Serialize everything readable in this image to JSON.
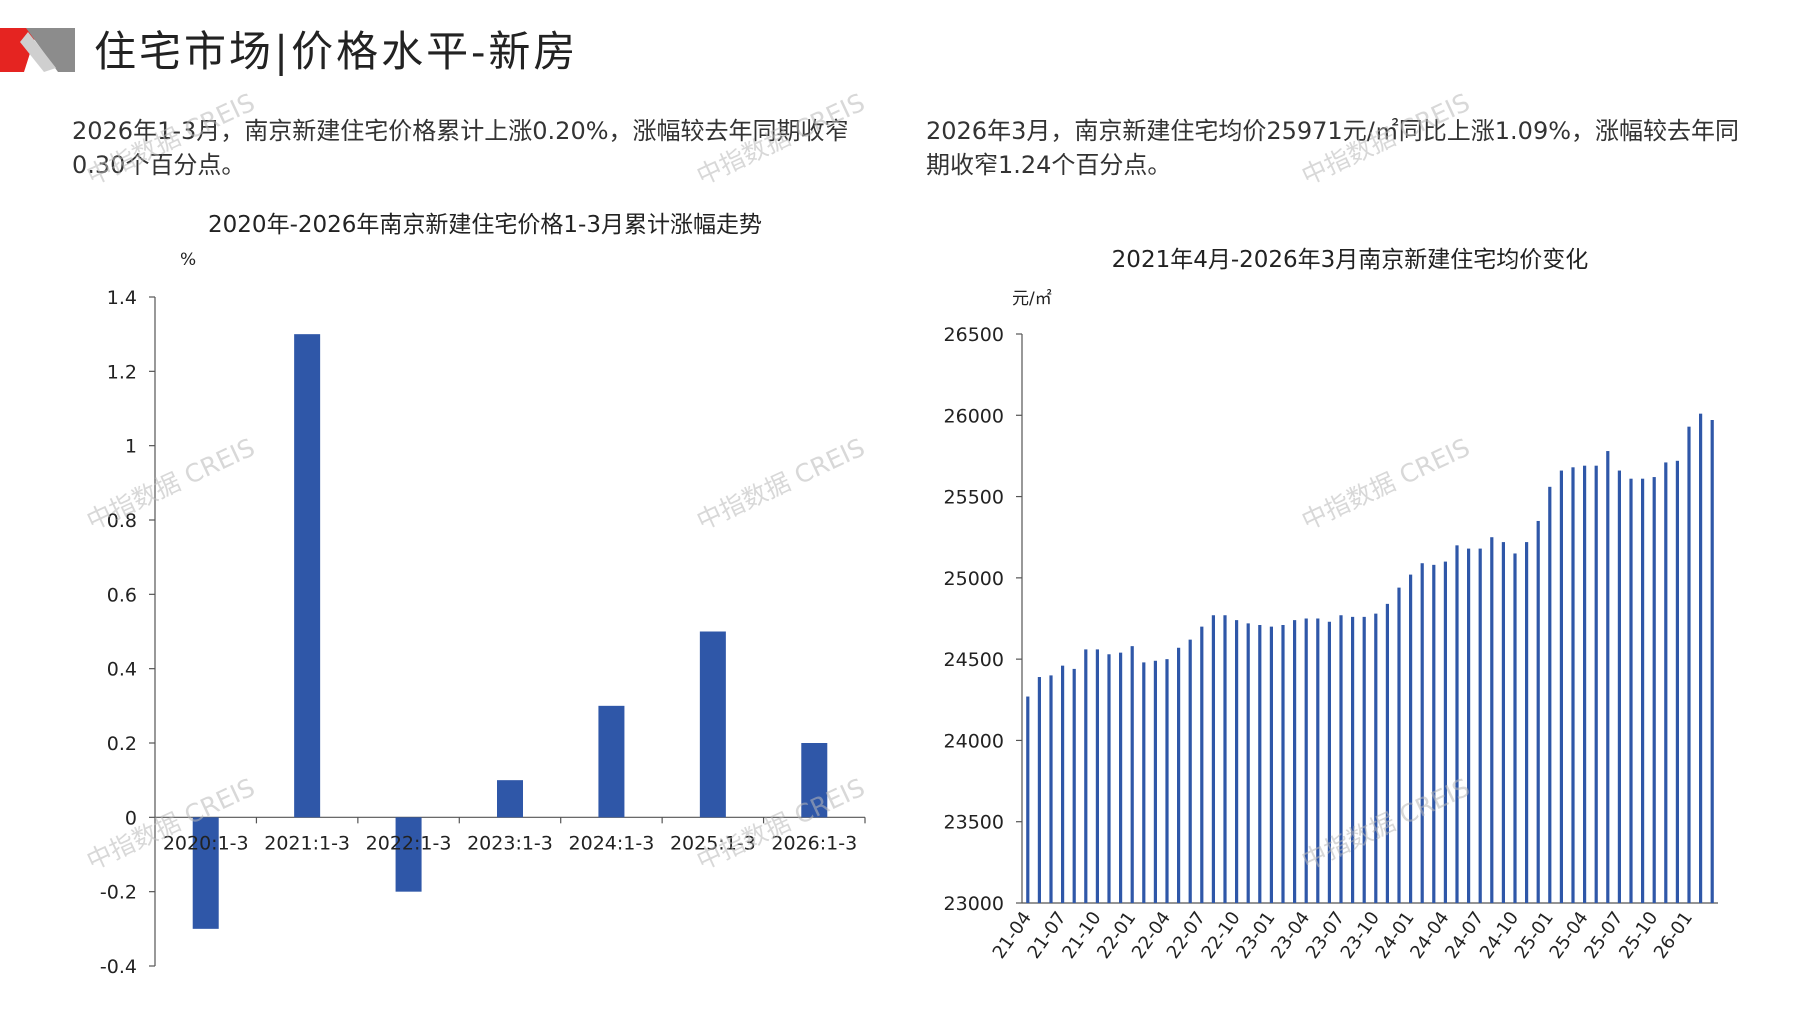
{
  "page": {
    "title": "住宅市场|价格水平-新房",
    "desc_left": "2026年1-3月，南京新建住宅价格累计上涨0.20%，涨幅较去年同期收窄0.30个百分点。",
    "desc_right": "2026年3月，南京新建住宅均价25971元/㎡同比上涨1.09%，涨幅较去年同期收窄1.24个百分点。",
    "watermark": "中指数据 CREIS",
    "accent_red": "#e52421",
    "accent_gray": "#8c8c8c"
  },
  "chart_data": [
    {
      "type": "bar",
      "title": "2020年-2026年南京新建住宅价格1-3月累计涨幅走势",
      "ylabel": "%",
      "xlabel": "",
      "categories": [
        "2020:1-3",
        "2021:1-3",
        "2022:1-3",
        "2023:1-3",
        "2024:1-3",
        "2025:1-3",
        "2026:1-3"
      ],
      "values": [
        -0.3,
        1.3,
        -0.2,
        0.1,
        0.3,
        0.5,
        0.2
      ],
      "ylim": [
        -0.4,
        1.4
      ],
      "yticks": [
        "-0.4",
        "-0.2",
        "0",
        "0.2",
        "0.4",
        "0.6",
        "0.8",
        "1",
        "1.2",
        "1.4"
      ],
      "ytick_values": [
        -0.4,
        -0.2,
        0,
        0.2,
        0.4,
        0.6,
        0.8,
        1.0,
        1.2,
        1.4
      ],
      "color": "#2f57a8",
      "grid": false
    },
    {
      "type": "bar",
      "title": "2021年4月-2026年3月南京新建住宅均价变化",
      "ylabel": "元/㎡",
      "xlabel": "",
      "categories": [
        "21-04",
        "21-05",
        "21-06",
        "21-07",
        "21-08",
        "21-09",
        "21-10",
        "21-11",
        "21-12",
        "22-01",
        "22-02",
        "22-03",
        "22-04",
        "22-05",
        "22-06",
        "22-07",
        "22-08",
        "22-09",
        "22-10",
        "22-11",
        "22-12",
        "23-01",
        "23-02",
        "23-03",
        "23-04",
        "23-05",
        "23-06",
        "23-07",
        "23-08",
        "23-09",
        "23-10",
        "23-11",
        "23-12",
        "24-01",
        "24-02",
        "24-03",
        "24-04",
        "24-05",
        "24-06",
        "24-07",
        "24-08",
        "24-09",
        "24-10",
        "24-11",
        "24-12",
        "25-01",
        "25-02",
        "25-03",
        "25-04",
        "25-05",
        "25-06",
        "25-07",
        "25-08",
        "25-09",
        "25-10",
        "25-11",
        "25-12",
        "26-01",
        "26-02",
        "26-03"
      ],
      "tick_labels": [
        "21-04",
        "21-07",
        "21-10",
        "22-01",
        "22-04",
        "22-07",
        "22-10",
        "23-01",
        "23-04",
        "23-07",
        "23-10",
        "24-01",
        "24-04",
        "24-07",
        "24-10",
        "25-01",
        "25-04",
        "25-07",
        "25-10",
        "26-01"
      ],
      "values": [
        24270,
        24390,
        24400,
        24460,
        24440,
        24560,
        24560,
        24530,
        24540,
        24580,
        24480,
        24490,
        24500,
        24570,
        24620,
        24700,
        24770,
        24770,
        24740,
        24720,
        24710,
        24700,
        24710,
        24740,
        24750,
        24750,
        24730,
        24770,
        24760,
        24760,
        24780,
        24840,
        24940,
        25020,
        25090,
        25080,
        25100,
        25200,
        25180,
        25180,
        25250,
        25220,
        25150,
        25220,
        25350,
        25560,
        25660,
        25680,
        25690,
        25690,
        25780,
        25660,
        25610,
        25610,
        25620,
        25710,
        25720,
        25930,
        26010,
        25971
      ],
      "ylim": [
        23000,
        26500
      ],
      "yticks": [
        "23000",
        "23500",
        "24000",
        "24500",
        "25000",
        "25500",
        "26000",
        "26500"
      ],
      "ytick_values": [
        23000,
        23500,
        24000,
        24500,
        25000,
        25500,
        26000,
        26500
      ],
      "color": "#2f57a8",
      "grid": false
    }
  ]
}
